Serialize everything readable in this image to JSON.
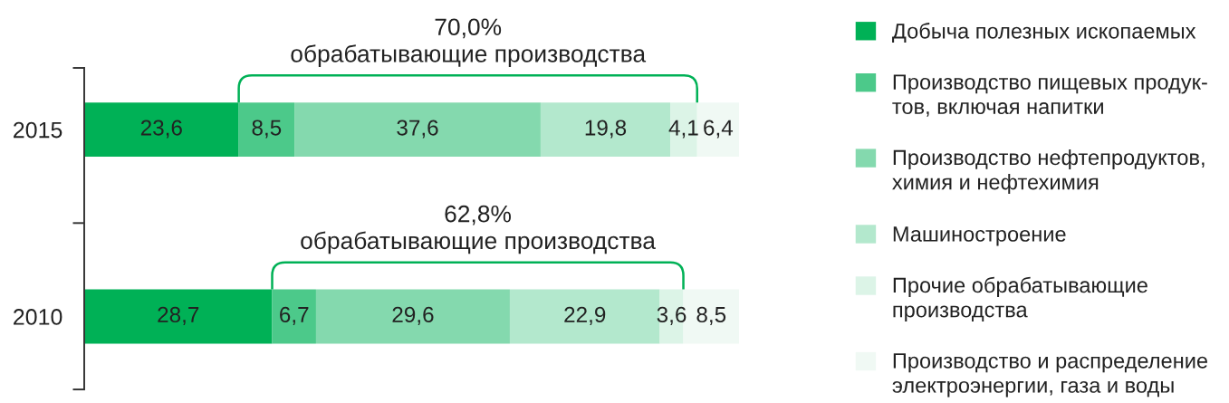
{
  "chart_data": {
    "type": "bar",
    "orientation": "horizontal",
    "stacked": true,
    "tick_labels": "y",
    "legend": "right",
    "categories": [
      "2015",
      "2010"
    ],
    "series": [
      {
        "name": "Добыча полезных ископаемых",
        "color": "#00b156",
        "values": [
          23.6,
          28.7
        ],
        "value_labels": [
          "23,6",
          "28,7"
        ]
      },
      {
        "name": "Производство пищевых продук-\nтов, включая напитки",
        "color": "#4cc98a",
        "values": [
          8.5,
          6.7
        ],
        "value_labels": [
          "8,5",
          "6,7"
        ]
      },
      {
        "name": "Производство нефтепродуктов,\nхимия и нефтехимия",
        "color": "#84d9ae",
        "values": [
          37.6,
          29.6
        ],
        "value_labels": [
          "37,6",
          "29,6"
        ]
      },
      {
        "name": "Машиностроение",
        "color": "#b3e8cd",
        "values": [
          19.8,
          22.9
        ],
        "value_labels": [
          "19,8",
          "22,9"
        ]
      },
      {
        "name": "Прочие обрабатывающие\nпроизводства",
        "color": "#dcf4e7",
        "values": [
          4.1,
          3.6
        ],
        "value_labels": [
          "4,1",
          "3,6"
        ]
      },
      {
        "name": "Производство и распределение\nэлектроэнергии, газа и воды",
        "color": "#f0f9f4",
        "values": [
          6.4,
          8.5
        ],
        "value_labels": [
          "6,4",
          "8,5"
        ]
      }
    ],
    "annotations": [
      "70,0%\nобрабатывающие производства",
      "62,8%\nобрабатывающие производства"
    ]
  }
}
